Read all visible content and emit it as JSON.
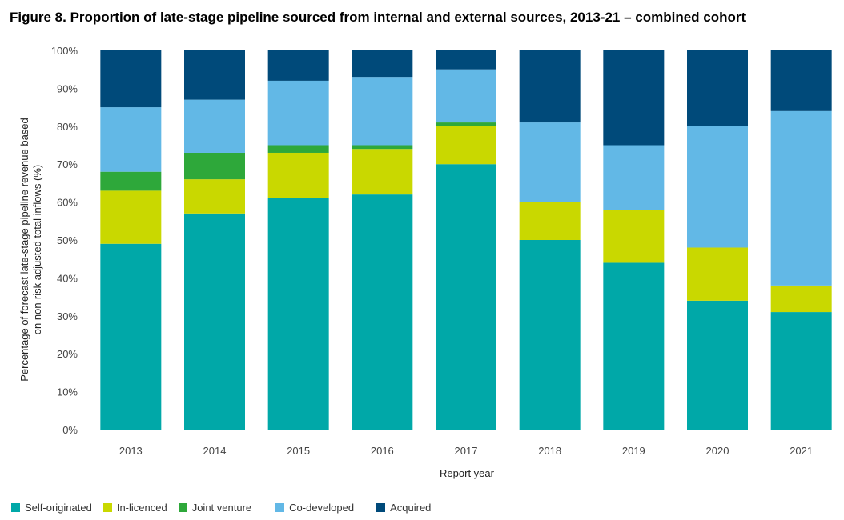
{
  "chart_data": {
    "type": "bar",
    "stacked": true,
    "title": "Figure 8. Proportion of late-stage pipeline sourced from internal and external sources, 2013-21 – combined cohort",
    "xlabel": "Report year",
    "ylabel_line1": "Percentage of forecast late-stage pipeline revenue based",
    "ylabel_line2": "on non-risk adjusted  total inflows (%)",
    "ylim": [
      0,
      100
    ],
    "yticks": [
      "0%",
      "10%",
      "20%",
      "30%",
      "40%",
      "50%",
      "60%",
      "70%",
      "80%",
      "90%",
      "100%"
    ],
    "categories": [
      "2013",
      "2014",
      "2015",
      "2016",
      "2017",
      "2018",
      "2019",
      "2020",
      "2021"
    ],
    "series": [
      {
        "name": "Self-originated",
        "color": "#00a8a8",
        "values": [
          49,
          57,
          61,
          62,
          70,
          50,
          44,
          34,
          31
        ]
      },
      {
        "name": "In-licenced",
        "color": "#c9d800",
        "values": [
          14,
          9,
          12,
          12,
          10,
          10,
          14,
          14,
          7
        ]
      },
      {
        "name": "Joint venture",
        "color": "#2ea83a",
        "values": [
          5,
          7,
          2,
          1,
          1,
          0,
          0,
          0,
          0
        ]
      },
      {
        "name": "Co-developed",
        "color": "#62b8e6",
        "values": [
          17,
          14,
          17,
          18,
          14,
          21,
          17,
          32,
          46
        ]
      },
      {
        "name": "Acquired",
        "color": "#004a7a",
        "values": [
          15,
          13,
          8,
          7,
          5,
          19,
          25,
          20,
          16
        ]
      }
    ]
  }
}
